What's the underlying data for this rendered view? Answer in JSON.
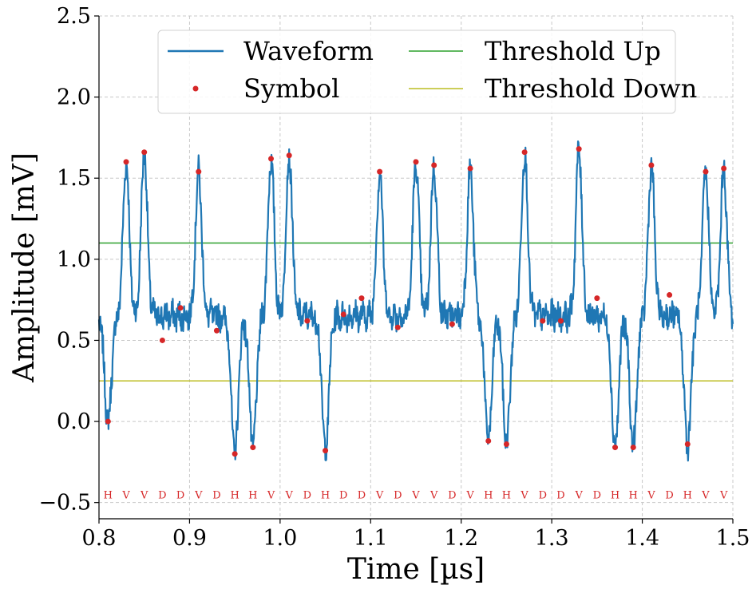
{
  "chart_data": {
    "type": "line",
    "xlabel": "Time [µs]",
    "ylabel": "Amplitude [mV]",
    "xlim": [
      0.8,
      1.5
    ],
    "ylim": [
      -0.6,
      2.5
    ],
    "xticks": [
      0.8,
      0.9,
      1.0,
      1.1,
      1.2,
      1.3,
      1.4,
      1.5
    ],
    "yticks": [
      -0.5,
      0.0,
      0.5,
      1.0,
      1.5,
      2.0,
      2.5
    ],
    "xtick_labels": [
      "0.8",
      "0.9",
      "1.0",
      "1.1",
      "1.2",
      "1.3",
      "1.4",
      "1.5"
    ],
    "ytick_labels": [
      "−0.5",
      "0.0",
      "0.5",
      "1.0",
      "1.5",
      "2.0",
      "2.5"
    ],
    "grid": true,
    "legend": {
      "placement": "top-center",
      "entries": [
        "Waveform",
        "Symbol",
        "Threshold Up",
        "Threshold Down"
      ]
    },
    "thresholds": {
      "up": 1.1,
      "down": 0.25
    },
    "colors": {
      "waveform": "#1f77b4",
      "symbol": "#d62728",
      "threshold_up": "#2ca02c",
      "threshold_down": "#bcbd22"
    },
    "baseline": 0.65,
    "symbol_label_y": -0.45,
    "symbols": {
      "x": [
        0.81,
        0.83,
        0.85,
        0.87,
        0.89,
        0.91,
        0.93,
        0.95,
        0.97,
        0.99,
        1.01,
        1.03,
        1.05,
        1.07,
        1.09,
        1.11,
        1.13,
        1.15,
        1.17,
        1.19,
        1.21,
        1.23,
        1.25,
        1.27,
        1.29,
        1.31,
        1.33,
        1.35,
        1.37,
        1.39,
        1.41,
        1.43,
        1.45,
        1.47,
        1.49
      ],
      "y": [
        0.0,
        1.6,
        1.66,
        0.5,
        0.7,
        1.54,
        0.56,
        -0.2,
        -0.16,
        1.62,
        1.64,
        0.62,
        -0.18,
        0.66,
        0.76,
        1.54,
        0.58,
        1.6,
        1.58,
        0.6,
        1.56,
        -0.12,
        -0.14,
        1.66,
        0.62,
        0.62,
        1.68,
        0.76,
        -0.16,
        -0.16,
        1.58,
        0.78,
        -0.14,
        1.54,
        1.56
      ],
      "labels": [
        "H",
        "V",
        "V",
        "D",
        "D",
        "V",
        "D",
        "H",
        "H",
        "V",
        "V",
        "D",
        "H",
        "D",
        "D",
        "V",
        "D",
        "V",
        "V",
        "D",
        "V",
        "H",
        "H",
        "V",
        "D",
        "D",
        "V",
        "D",
        "H",
        "H",
        "V",
        "D",
        "H",
        "V",
        "V"
      ]
    }
  }
}
